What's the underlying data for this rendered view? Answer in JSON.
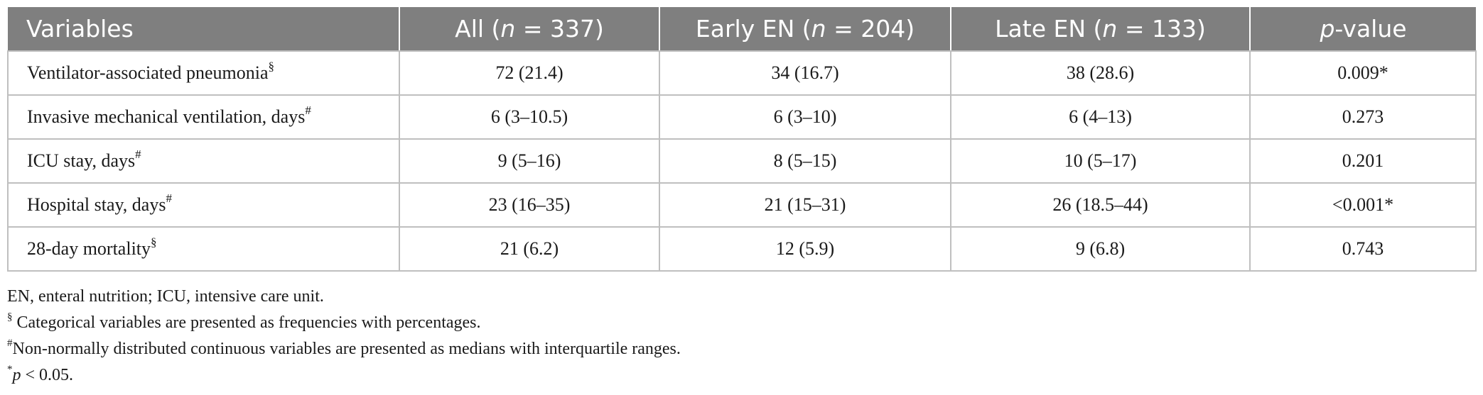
{
  "table": {
    "headers": {
      "variables": "Variables",
      "all_prefix": "All (",
      "all_n": "n",
      "all_suffix": " = 337)",
      "early_prefix": "Early EN (",
      "early_n": "n",
      "early_suffix": " = 204)",
      "late_prefix": "Late EN (",
      "late_n": "n",
      "late_suffix": " = 133)",
      "p_italic": "p",
      "p_suffix": "-value"
    },
    "rows": [
      {
        "label": "Ventilator-associated pneumonia",
        "mark": "§",
        "all": "72 (21.4)",
        "early": "34 (16.7)",
        "late": "38 (28.6)",
        "p": "0.009*"
      },
      {
        "label": "Invasive mechanical ventilation, days",
        "mark": "#",
        "all": "6 (3–10.5)",
        "early": "6 (3–10)",
        "late": "6 (4–13)",
        "p": "0.273"
      },
      {
        "label": "ICU stay, days",
        "mark": "#",
        "all": "9 (5–16)",
        "early": "8 (5–15)",
        "late": "10 (5–17)",
        "p": "0.201"
      },
      {
        "label": "Hospital stay, days",
        "mark": "#",
        "all": "23 (16–35)",
        "early": "21 (15–31)",
        "late": "26 (18.5–44)",
        "p": "<0.001*"
      },
      {
        "label": "28-day mortality",
        "mark": "§",
        "all": "21 (6.2)",
        "early": "12 (5.9)",
        "late": "9 (6.8)",
        "p": "0.743"
      }
    ]
  },
  "footnotes": {
    "abbrev": "EN, enteral nutrition; ICU, intensive care unit.",
    "section_mark": "§",
    "section_text": " Categorical variables are presented as frequencies with percentages.",
    "hash_mark": "#",
    "hash_text": "Non-normally distributed continuous variables are presented as medians with interquartile ranges.",
    "star_mark": "*",
    "star_p": "p",
    "star_text": " < 0.05."
  }
}
